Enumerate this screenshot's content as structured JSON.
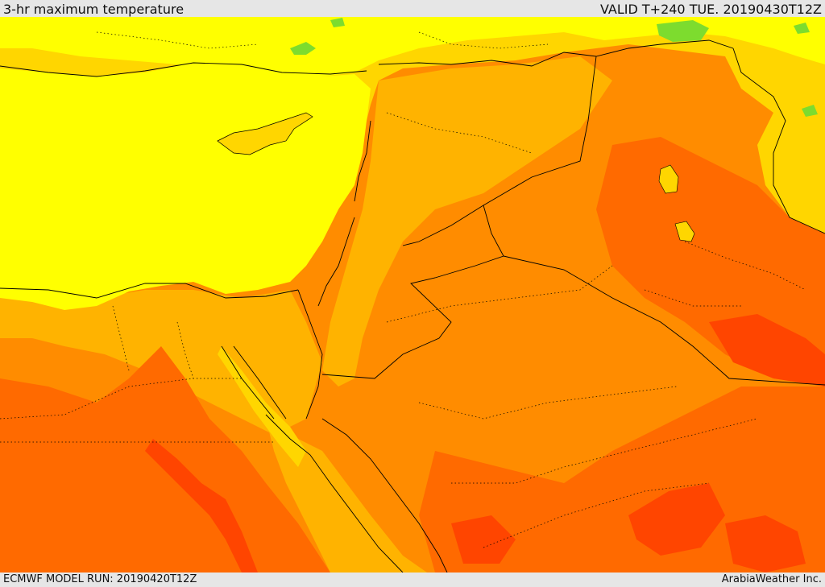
{
  "header": {
    "title": "3-hr maximum temperature",
    "valid": "VALID T+240 TUE. 20190430T12Z"
  },
  "footer": {
    "model_run": "ECMWF MODEL RUN: 20190420T12Z",
    "brand": "ArabiaWeather Inc."
  },
  "colors": {
    "sea": "#ffff00",
    "warm_yellow": "#ffd600",
    "light_orange": "#ffb300",
    "orange": "#ff8c00",
    "dark_orange": "#ff6a00",
    "red_orange": "#ff4500",
    "green": "#7ddc2e",
    "border_line": "#000000"
  }
}
